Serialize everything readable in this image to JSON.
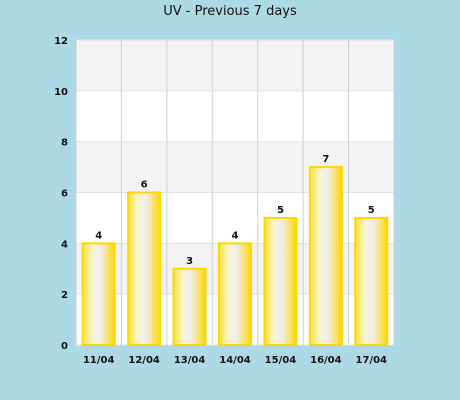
{
  "chart_data": {
    "type": "bar",
    "title": "UV - Previous 7 days",
    "categories": [
      "11/04",
      "12/04",
      "13/04",
      "14/04",
      "15/04",
      "16/04",
      "17/04"
    ],
    "values": [
      4,
      6,
      3,
      4,
      5,
      7,
      5
    ],
    "ylim": [
      0,
      12
    ],
    "yticks": [
      0,
      2,
      4,
      6,
      8,
      10,
      12
    ],
    "grid": true,
    "bar_color": "#ffd700",
    "band_color": "#f3f3f3",
    "background_color": "#add8e6"
  }
}
